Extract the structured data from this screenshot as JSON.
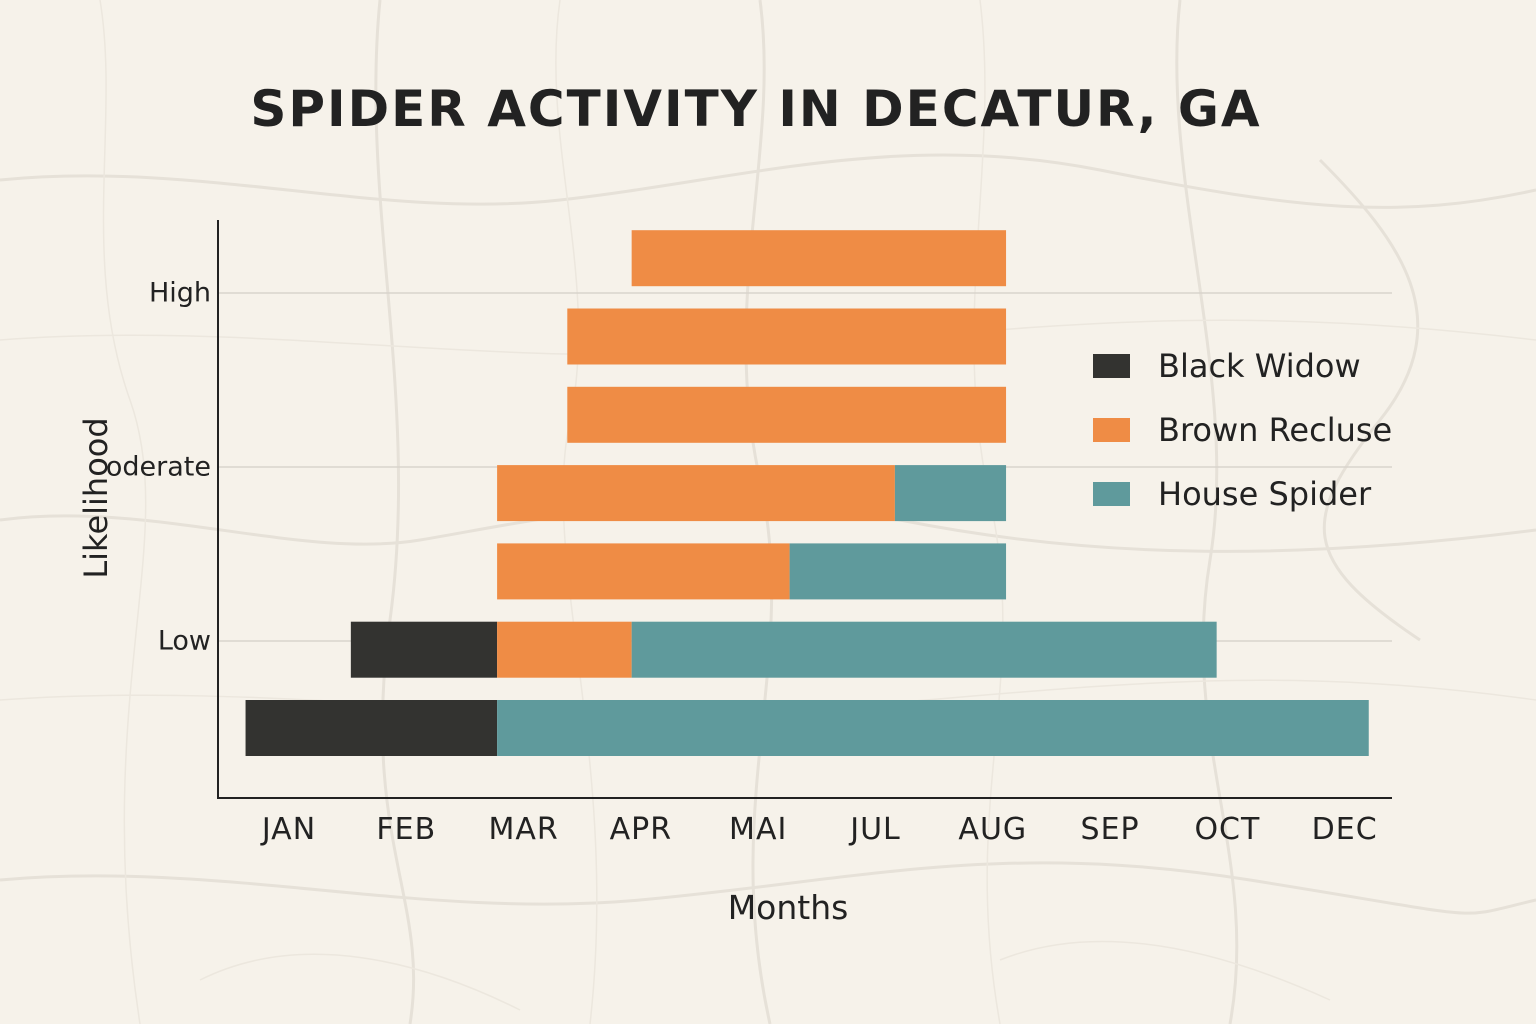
{
  "chart_data": {
    "type": "bar",
    "orientation": "horizontal",
    "stacked": true,
    "title": "SPIDER ACTIVITY IN DECATUR, GA",
    "xlabel": "Months",
    "ylabel": "Likelihood",
    "x_ticks": [
      "JAN",
      "FEB",
      "MAR",
      "APR",
      "MAI",
      "JUL",
      "AUG",
      "SEP",
      "OCT",
      "DEC"
    ],
    "y_ticks": [
      {
        "label": "High",
        "level": 3
      },
      {
        "label": "oderate",
        "level": 2
      },
      {
        "label": "Low",
        "level": 1
      }
    ],
    "grid": true,
    "legend_position": "right",
    "series": [
      {
        "name": "Black Widow",
        "color": "#333330"
      },
      {
        "name": "Brown Recluse",
        "color": "#ef8c45"
      },
      {
        "name": "House Spider",
        "color": "#5f9a9c"
      }
    ],
    "bars": [
      {
        "level": 3.2,
        "segments": [
          {
            "series": "Brown Recluse",
            "start": 3.45,
            "end": 6.65
          }
        ]
      },
      {
        "level": 2.75,
        "segments": [
          {
            "series": "Brown Recluse",
            "start": 2.9,
            "end": 6.65
          }
        ]
      },
      {
        "level": 2.3,
        "segments": [
          {
            "series": "Brown Recluse",
            "start": 2.9,
            "end": 6.65
          }
        ]
      },
      {
        "level": 1.85,
        "segments": [
          {
            "series": "Brown Recluse",
            "start": 2.3,
            "end": 5.7
          },
          {
            "series": "House Spider",
            "start": 5.7,
            "end": 6.65
          }
        ]
      },
      {
        "level": 1.4,
        "segments": [
          {
            "series": "Brown Recluse",
            "start": 2.3,
            "end": 4.8
          },
          {
            "series": "House Spider",
            "start": 4.8,
            "end": 6.65
          }
        ]
      },
      {
        "level": 0.95,
        "segments": [
          {
            "series": "Black Widow",
            "start": 1.05,
            "end": 2.3
          },
          {
            "series": "Brown Recluse",
            "start": 2.3,
            "end": 3.45
          },
          {
            "series": "House Spider",
            "start": 3.45,
            "end": 8.45
          }
        ]
      },
      {
        "level": 0.5,
        "segments": [
          {
            "series": "Black Widow",
            "start": 0.15,
            "end": 2.3
          },
          {
            "series": "House Spider",
            "start": 2.3,
            "end": 9.75
          }
        ]
      }
    ]
  }
}
